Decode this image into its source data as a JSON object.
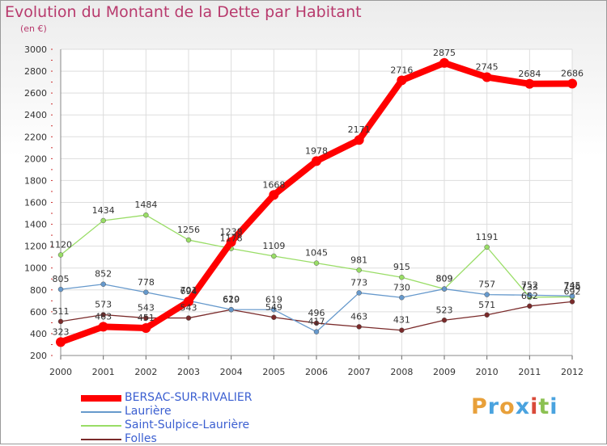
{
  "title": "Evolution du Montant de la Dette par Habitant",
  "subtitle": "(en €)",
  "logo": "Proxiti",
  "chart_data": {
    "type": "line",
    "x": [
      "2000",
      "2001",
      "2002",
      "2003",
      "2004",
      "2005",
      "2006",
      "2007",
      "2008",
      "2009",
      "2010",
      "2011",
      "2012"
    ],
    "ylim": [
      200,
      3000
    ],
    "yticks": [
      200,
      400,
      600,
      800,
      1000,
      1200,
      1400,
      1600,
      1800,
      2000,
      2200,
      2400,
      2600,
      2800,
      3000
    ],
    "series": [
      {
        "name": "BERSAC-SUR-RIVALIER",
        "color": "#ff0000",
        "values": [
          323,
          463,
          451,
          694,
          1238,
          1668,
          1978,
          2171,
          2716,
          2875,
          2745,
          2684,
          2686
        ]
      },
      {
        "name": "Laurière",
        "color": "#6699cc",
        "values": [
          805,
          852,
          778,
          701,
          620,
          619,
          417,
          773,
          730,
          809,
          757,
          752,
          745
        ]
      },
      {
        "name": "Saint-Sulpice-Laurière",
        "color": "#99dd66",
        "values": [
          1120,
          1434,
          1484,
          1256,
          1178,
          1109,
          1045,
          981,
          915,
          809,
          1191,
          733,
          736
        ]
      },
      {
        "name": "Folles",
        "color": "#7a2a2a",
        "values": [
          511,
          573,
          543,
          543,
          619,
          549,
          496,
          463,
          431,
          523,
          571,
          652,
          692
        ]
      }
    ]
  }
}
